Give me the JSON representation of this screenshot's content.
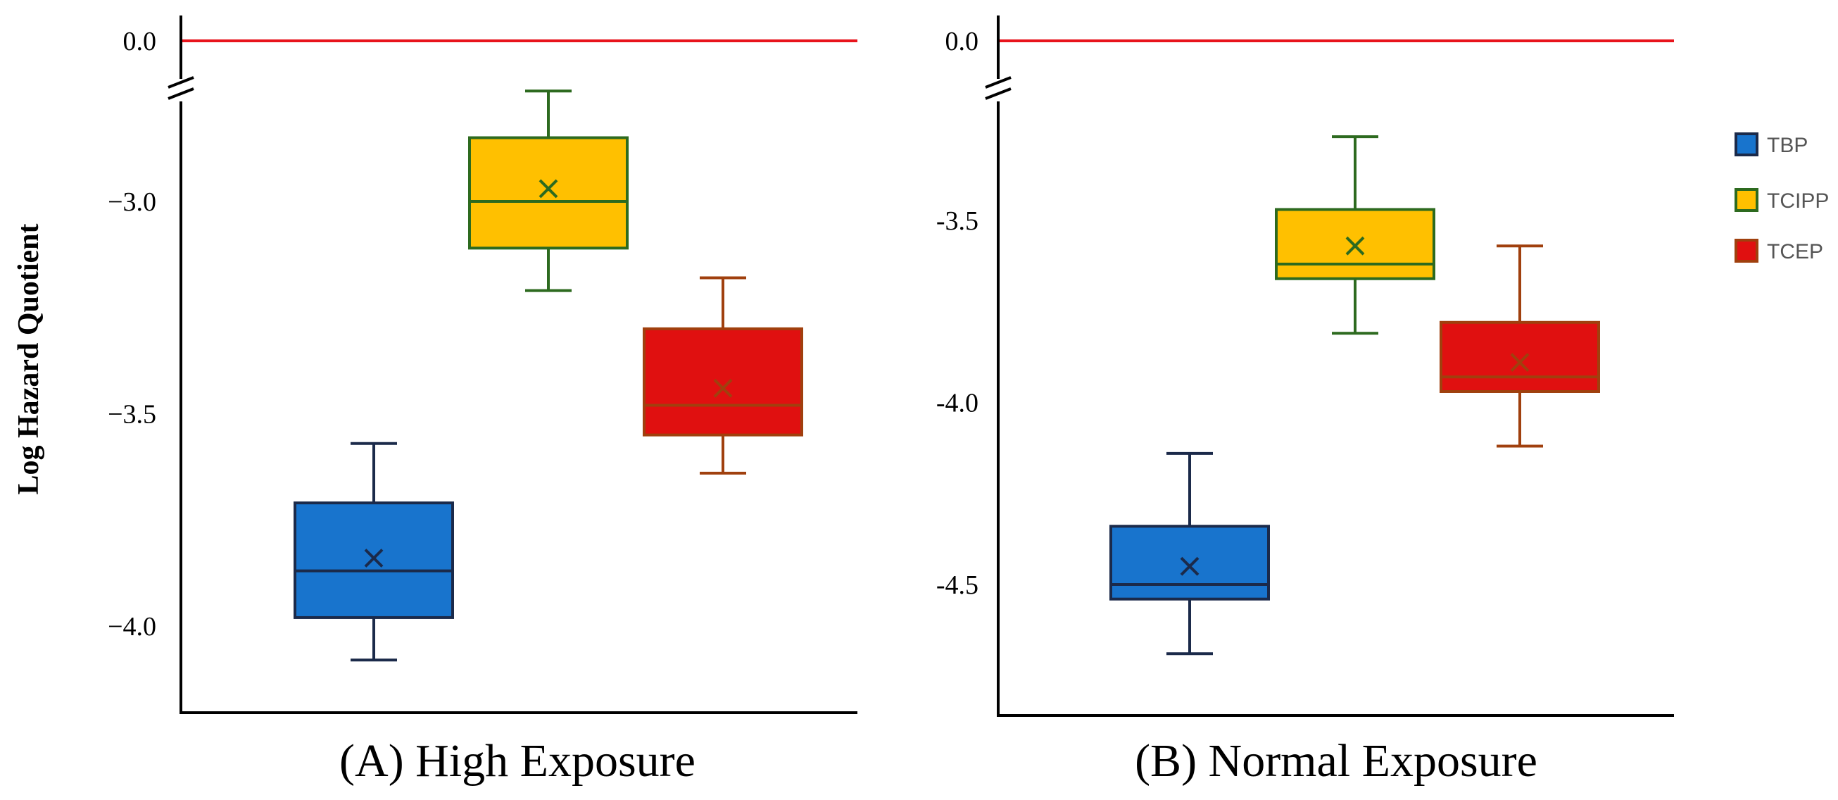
{
  "y_axis_label": "Log Hazard Quotient",
  "reference_line_color": "#e8141c",
  "legend": [
    {
      "label": "TBP",
      "fill": "#1874cd",
      "stroke": "#1b2a4a"
    },
    {
      "label": "TCIPP",
      "fill": "#ffc000",
      "stroke": "#2d6a1f"
    },
    {
      "label": "TCEP",
      "fill": "#e01010",
      "stroke": "#a0400e"
    }
  ],
  "chart_data": [
    {
      "type": "box",
      "title": "(A) High Exposure",
      "ylabel": "Log Hazard Quotient",
      "ylim": [
        -4.2,
        -2.75
      ],
      "broken_axis_top_value": 0.0,
      "yticks": [
        -3.0,
        -3.5,
        -4.0
      ],
      "ytick_labels": [
        "−3.0",
        "−3.5",
        "−4.0"
      ],
      "top_tick_label": "0.0",
      "reference_line": 0.0,
      "series": [
        {
          "name": "TBP",
          "min": -4.08,
          "q1": -3.98,
          "median": -3.87,
          "mean": -3.84,
          "q3": -3.71,
          "max": -3.57
        },
        {
          "name": "TCIPP",
          "min": -3.21,
          "q1": -3.11,
          "median": -3.0,
          "mean": -2.97,
          "q3": -2.85,
          "max": -2.74
        },
        {
          "name": "TCEP",
          "min": -3.64,
          "q1": -3.55,
          "median": -3.48,
          "mean": -3.44,
          "q3": -3.3,
          "max": -3.18
        }
      ]
    },
    {
      "type": "box",
      "title": "(B) Normal Exposure",
      "ylim": [
        -4.85,
        -3.12
      ],
      "broken_axis_top_value": 0.0,
      "yticks": [
        -3.5,
        -4.0,
        -4.5
      ],
      "ytick_labels": [
        "-3.5",
        "-4.0",
        "-4.5"
      ],
      "top_tick_label": "0.0",
      "reference_line": 0.0,
      "series": [
        {
          "name": "TBP",
          "min": -4.69,
          "q1": -4.54,
          "median": -4.5,
          "mean": -4.45,
          "q3": -4.34,
          "max": -4.14
        },
        {
          "name": "TCIPP",
          "min": -3.81,
          "q1": -3.66,
          "median": -3.62,
          "mean": -3.57,
          "q3": -3.47,
          "max": -3.27
        },
        {
          "name": "TCEP",
          "min": -4.12,
          "q1": -3.97,
          "median": -3.93,
          "mean": -3.89,
          "q3": -3.78,
          "max": -3.57
        }
      ]
    }
  ]
}
